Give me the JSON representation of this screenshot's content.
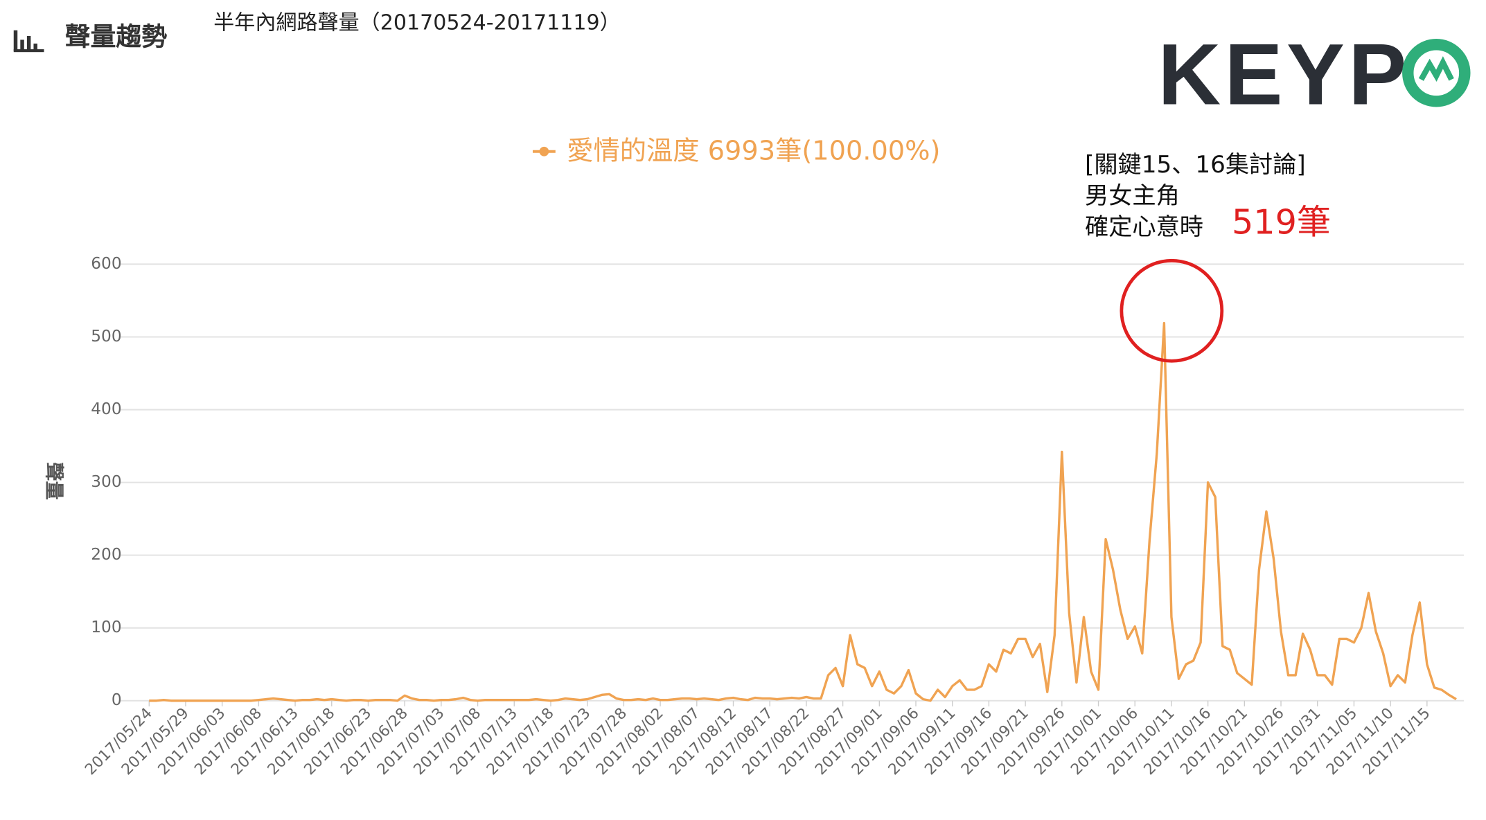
{
  "chart_data": {
    "type": "line",
    "header": "聲量趨勢",
    "title": "半年內網路聲量（20170524-20171119）",
    "logo": "KEYP",
    "y_label": "聲量",
    "annotation": {
      "lines": [
        "[關鍵15、16集討論]",
        "男女主角",
        "確定心意時"
      ],
      "highlight": "519筆"
    },
    "categories": [
      "2017/05/24",
      null,
      null,
      null,
      null,
      "2017/05/29",
      null,
      null,
      null,
      null,
      "2017/06/03",
      null,
      null,
      null,
      null,
      "2017/06/08",
      null,
      null,
      null,
      null,
      "2017/06/13",
      null,
      null,
      null,
      null,
      "2017/06/18",
      null,
      null,
      null,
      null,
      "2017/06/23",
      null,
      null,
      null,
      null,
      "2017/06/28",
      null,
      null,
      null,
      null,
      "2017/07/03",
      null,
      null,
      null,
      null,
      "2017/07/08",
      null,
      null,
      null,
      null,
      "2017/07/13",
      null,
      null,
      null,
      null,
      "2017/07/18",
      null,
      null,
      null,
      null,
      "2017/07/23",
      null,
      null,
      null,
      null,
      "2017/07/28",
      null,
      null,
      null,
      null,
      "2017/08/02",
      null,
      null,
      null,
      null,
      "2017/08/07",
      null,
      null,
      null,
      null,
      "2017/08/12",
      null,
      null,
      null,
      null,
      "2017/08/17",
      null,
      null,
      null,
      null,
      "2017/08/22",
      null,
      null,
      null,
      null,
      "2017/08/27",
      null,
      null,
      null,
      null,
      "2017/09/01",
      null,
      null,
      null,
      null,
      "2017/09/06",
      null,
      null,
      null,
      null,
      "2017/09/11",
      null,
      null,
      null,
      null,
      "2017/09/16",
      null,
      null,
      null,
      null,
      "2017/09/21",
      null,
      null,
      null,
      null,
      "2017/09/26",
      null,
      null,
      null,
      null,
      "2017/10/01",
      null,
      null,
      null,
      null,
      "2017/10/06",
      null,
      null,
      null,
      null,
      "2017/10/11",
      null,
      null,
      null,
      null,
      "2017/10/16",
      null,
      null,
      null,
      null,
      "2017/10/21",
      null,
      null,
      null,
      null,
      "2017/10/26",
      null,
      null,
      null,
      null,
      "2017/10/31",
      null,
      null,
      null,
      null,
      "2017/11/05",
      null,
      null,
      null,
      null,
      "2017/11/10",
      null,
      null,
      null,
      null,
      "2017/11/15",
      null,
      null,
      null,
      null
    ],
    "series": [
      {
        "name": "愛情的溫度 6993筆(100.00%)",
        "color": "#f0a352",
        "values": [
          0,
          0,
          1,
          0,
          0,
          0,
          0,
          0,
          0,
          0,
          0,
          0,
          0,
          0,
          0,
          1,
          2,
          3,
          2,
          1,
          0,
          1,
          1,
          2,
          1,
          2,
          1,
          0,
          1,
          1,
          0,
          1,
          1,
          1,
          0,
          7,
          3,
          1,
          1,
          0,
          1,
          1,
          2,
          4,
          1,
          0,
          1,
          1,
          1,
          1,
          1,
          1,
          1,
          2,
          1,
          0,
          1,
          3,
          2,
          1,
          2,
          5,
          8,
          9,
          3,
          1,
          1,
          2,
          1,
          3,
          1,
          1,
          2,
          3,
          3,
          2,
          3,
          2,
          1,
          3,
          4,
          2,
          1,
          4,
          3,
          3,
          2,
          3,
          4,
          3,
          5,
          3,
          3,
          35,
          45,
          20,
          90,
          50,
          45,
          20,
          40,
          15,
          10,
          20,
          42,
          10,
          2,
          0,
          15,
          5,
          20,
          28,
          15,
          15,
          20,
          50,
          40,
          70,
          65,
          85,
          85,
          60,
          78,
          12,
          90,
          342,
          120,
          25,
          115,
          40,
          15,
          222,
          180,
          125,
          85,
          102,
          65,
          220,
          340,
          519,
          115,
          30,
          50,
          55,
          80,
          300,
          280,
          75,
          70,
          38,
          30,
          22,
          180,
          260,
          195,
          95,
          35,
          35,
          92,
          70,
          35,
          35,
          22,
          85,
          85,
          80,
          100,
          148,
          95,
          65,
          20,
          35,
          25,
          90,
          135,
          50,
          18,
          15,
          8,
          2
        ]
      }
    ],
    "ylim": [
      0,
      600
    ],
    "yticks": [
      0,
      100,
      200,
      300,
      400,
      500,
      600
    ],
    "grid": true
  }
}
